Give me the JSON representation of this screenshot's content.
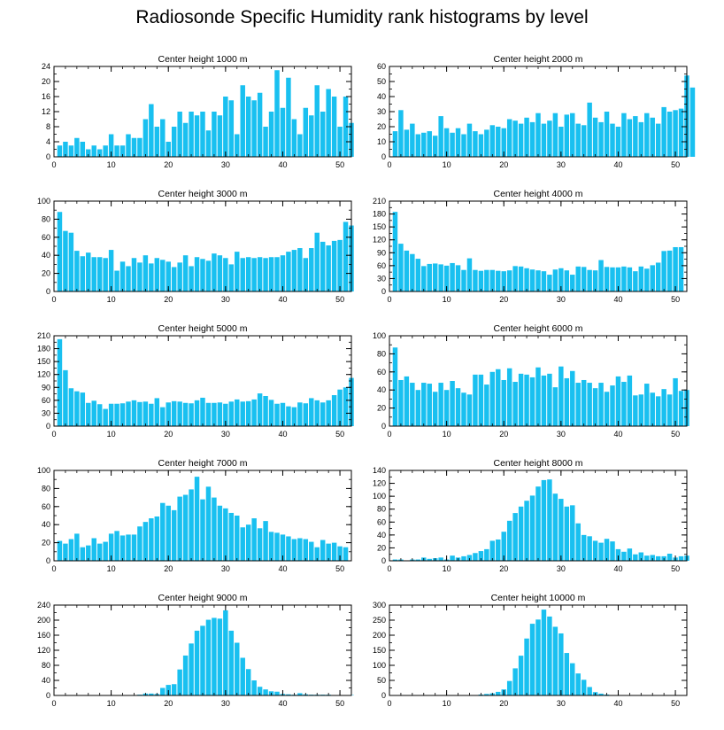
{
  "title": "Radiosonde Specific Humidity rank histograms by level",
  "colors": {
    "bar": "#19c0f0",
    "bar_edge": "#ffffff",
    "axis": "#000000"
  },
  "chart_data": [
    {
      "type": "bar",
      "title": "Center height 1000 m",
      "xlim": [
        0,
        52
      ],
      "ylim": [
        0,
        24
      ],
      "xticks": [
        0,
        10,
        20,
        30,
        40,
        50
      ],
      "yticks": [
        0,
        4,
        8,
        12,
        16,
        20,
        24
      ],
      "values": [
        3,
        4,
        3,
        5,
        4,
        2,
        3,
        2,
        3,
        6,
        3,
        3,
        6,
        5,
        5,
        10,
        14,
        8,
        10,
        4,
        8,
        12,
        9,
        12,
        11,
        12,
        7,
        12,
        11,
        16,
        15,
        6,
        19,
        16,
        15,
        17,
        8,
        12,
        23,
        13,
        21,
        10,
        6,
        13,
        11,
        19,
        12,
        18,
        16,
        8,
        16,
        9
      ]
    },
    {
      "type": "bar",
      "title": "Center height 2000 m",
      "xlim": [
        0,
        52
      ],
      "ylim": [
        0,
        60
      ],
      "xticks": [
        0,
        10,
        20,
        30,
        40,
        50
      ],
      "yticks": [
        0,
        10,
        20,
        30,
        40,
        50,
        60
      ],
      "values": [
        17,
        31,
        18,
        22,
        15,
        16,
        17,
        14,
        27,
        19,
        16,
        19,
        15,
        22,
        17,
        15,
        18,
        21,
        20,
        19,
        25,
        24,
        22,
        26,
        23,
        29,
        22,
        24,
        29,
        20,
        28,
        29,
        22,
        21,
        36,
        26,
        23,
        30,
        22,
        20,
        29,
        25,
        27,
        23,
        29,
        26,
        22,
        33,
        30,
        31,
        32,
        54,
        46
      ]
    },
    {
      "type": "bar",
      "title": "Center height 3000 m",
      "xlim": [
        0,
        52
      ],
      "ylim": [
        0,
        100
      ],
      "xticks": [
        0,
        10,
        20,
        30,
        40,
        50
      ],
      "yticks": [
        0,
        20,
        40,
        60,
        80,
        100
      ],
      "values": [
        88,
        67,
        65,
        45,
        39,
        43,
        38,
        38,
        37,
        46,
        23,
        33,
        28,
        37,
        32,
        40,
        31,
        37,
        35,
        33,
        27,
        32,
        40,
        28,
        38,
        36,
        34,
        42,
        40,
        37,
        30,
        44,
        37,
        38,
        37,
        38,
        37,
        38,
        38,
        40,
        44,
        46,
        48,
        37,
        48,
        65,
        55,
        51,
        56,
        57,
        77,
        73
      ]
    },
    {
      "type": "bar",
      "title": "Center height 4000 m",
      "xlim": [
        0,
        52
      ],
      "ylim": [
        0,
        210
      ],
      "xticks": [
        0,
        10,
        20,
        30,
        40,
        50
      ],
      "yticks": [
        0,
        30,
        60,
        90,
        120,
        150,
        180,
        210
      ],
      "values": [
        185,
        111,
        95,
        87,
        76,
        59,
        64,
        65,
        63,
        60,
        66,
        61,
        50,
        77,
        50,
        48,
        50,
        50,
        48,
        47,
        49,
        59,
        58,
        54,
        51,
        49,
        47,
        39,
        51,
        54,
        49,
        39,
        58,
        57,
        50,
        49,
        73,
        57,
        56,
        56,
        58,
        56,
        47,
        58,
        53,
        61,
        67,
        94,
        95,
        103,
        103
      ]
    },
    {
      "type": "bar",
      "title": "Center height 5000 m",
      "xlim": [
        0,
        52
      ],
      "ylim": [
        0,
        210
      ],
      "xticks": [
        0,
        10,
        20,
        30,
        40,
        50
      ],
      "yticks": [
        0,
        30,
        60,
        90,
        120,
        150,
        180,
        210
      ],
      "values": [
        202,
        130,
        88,
        81,
        78,
        54,
        59,
        51,
        40,
        52,
        52,
        53,
        57,
        60,
        56,
        57,
        52,
        65,
        44,
        55,
        58,
        57,
        54,
        53,
        60,
        66,
        54,
        54,
        55,
        52,
        57,
        62,
        57,
        58,
        62,
        76,
        70,
        61,
        52,
        54,
        46,
        44,
        55,
        53,
        65,
        60,
        55,
        60,
        72,
        85,
        90,
        112
      ]
    },
    {
      "type": "bar",
      "title": "Center height 6000 m",
      "xlim": [
        0,
        52
      ],
      "ylim": [
        0,
        100
      ],
      "xticks": [
        0,
        10,
        20,
        30,
        40,
        50
      ],
      "yticks": [
        0,
        20,
        40,
        60,
        80,
        100
      ],
      "values": [
        87,
        51,
        55,
        48,
        40,
        48,
        47,
        38,
        48,
        40,
        50,
        42,
        37,
        35,
        57,
        57,
        46,
        60,
        63,
        51,
        64,
        49,
        58,
        57,
        54,
        65,
        56,
        58,
        43,
        66,
        53,
        61,
        48,
        51,
        48,
        42,
        48,
        38,
        45,
        55,
        49,
        56,
        34,
        35,
        47,
        37,
        33,
        41,
        35,
        53,
        39,
        40
      ]
    },
    {
      "type": "bar",
      "title": "Center height 7000 m",
      "xlim": [
        0,
        52
      ],
      "ylim": [
        0,
        100
      ],
      "xticks": [
        0,
        10,
        20,
        30,
        40,
        50
      ],
      "yticks": [
        0,
        20,
        40,
        60,
        80,
        100
      ],
      "values": [
        22,
        19,
        24,
        30,
        15,
        17,
        25,
        19,
        21,
        30,
        33,
        28,
        29,
        29,
        38,
        43,
        47,
        49,
        64,
        61,
        56,
        71,
        73,
        79,
        93,
        68,
        82,
        70,
        61,
        58,
        53,
        50,
        37,
        40,
        47,
        36,
        44,
        32,
        31,
        29,
        27,
        24,
        25,
        24,
        21,
        15,
        23,
        19,
        20,
        16,
        15
      ]
    },
    {
      "type": "bar",
      "title": "Center height 8000 m",
      "xlim": [
        0,
        52
      ],
      "ylim": [
        0,
        140
      ],
      "xticks": [
        0,
        10,
        20,
        30,
        40,
        50
      ],
      "yticks": [
        0,
        20,
        40,
        60,
        80,
        100,
        120,
        140
      ],
      "values": [
        2,
        2,
        0,
        2,
        2,
        5,
        3,
        4,
        5,
        2,
        8,
        5,
        7,
        9,
        12,
        15,
        18,
        31,
        33,
        45,
        62,
        74,
        84,
        93,
        101,
        115,
        125,
        126,
        104,
        96,
        84,
        86,
        58,
        40,
        38,
        31,
        28,
        34,
        30,
        18,
        14,
        19,
        10,
        13,
        8,
        9,
        7,
        7,
        11,
        5,
        7,
        8
      ]
    },
    {
      "type": "bar",
      "title": "Center height 9000 m",
      "xlim": [
        0,
        52
      ],
      "ylim": [
        0,
        240
      ],
      "xticks": [
        0,
        10,
        20,
        30,
        40,
        50
      ],
      "yticks": [
        0,
        40,
        80,
        120,
        160,
        200,
        240
      ],
      "values": [
        0,
        0,
        0,
        0,
        0,
        0,
        0,
        0,
        0,
        0,
        0,
        0,
        0,
        0,
        2,
        5,
        5,
        4,
        20,
        28,
        30,
        69,
        106,
        138,
        172,
        185,
        201,
        206,
        204,
        226,
        172,
        140,
        100,
        70,
        40,
        23,
        16,
        11,
        10,
        4,
        3,
        2,
        6,
        3,
        2,
        2,
        2,
        2,
        1,
        1,
        1,
        1
      ]
    },
    {
      "type": "bar",
      "title": "Center height 10000 m",
      "xlim": [
        0,
        52
      ],
      "ylim": [
        0,
        300
      ],
      "xticks": [
        0,
        10,
        20,
        30,
        40,
        50
      ],
      "yticks": [
        0,
        50,
        100,
        150,
        200,
        250,
        300
      ],
      "values": [
        0,
        0,
        0,
        0,
        0,
        0,
        0,
        0,
        0,
        0,
        0,
        0,
        0,
        0,
        0,
        3,
        5,
        7,
        12,
        20,
        48,
        90,
        132,
        189,
        238,
        252,
        285,
        262,
        228,
        206,
        141,
        107,
        73,
        52,
        28,
        11,
        6,
        3,
        1,
        1,
        1,
        1,
        0,
        0,
        0,
        0,
        0,
        0,
        0,
        0,
        0,
        0
      ]
    }
  ]
}
